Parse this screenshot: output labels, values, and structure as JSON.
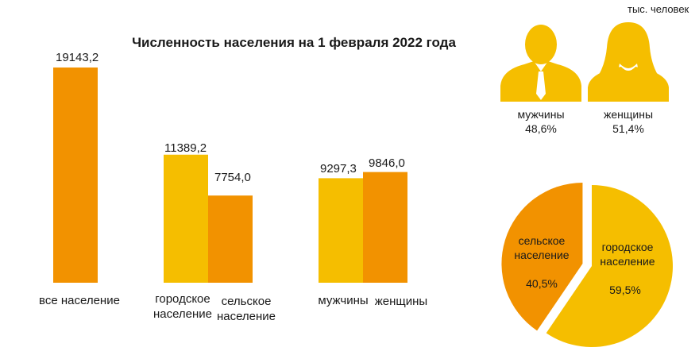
{
  "unit_label": "тыс. человек",
  "colors": {
    "orange": "#F29200",
    "yellow": "#F5BE00"
  },
  "chart_data": [
    {
      "type": "bar",
      "title": "Численность населения на 1 февраля 2022 года",
      "categories": [
        "все население",
        "городское население",
        "сельское население",
        "мужчины",
        "женщины"
      ],
      "values": [
        19143.2,
        11389.2,
        7754.0,
        9297.3,
        9846.0
      ],
      "value_labels": [
        "19143,2",
        "11389,2",
        "7754,0",
        "9297,3",
        "9846,0"
      ],
      "ylim": [
        0,
        20000
      ],
      "grid": false
    },
    {
      "type": "pie",
      "slices": [
        {
          "name": "городское население",
          "value": 59.5,
          "label": "59,5%"
        },
        {
          "name": "сельское население",
          "value": 40.5,
          "label": "40,5%"
        }
      ]
    }
  ],
  "gender_icons": [
    {
      "icon": "man-silhouette-icon",
      "label": "мужчины",
      "pct": "48,6%"
    },
    {
      "icon": "woman-silhouette-icon",
      "label": "женщины",
      "pct": "51,4%"
    }
  ]
}
